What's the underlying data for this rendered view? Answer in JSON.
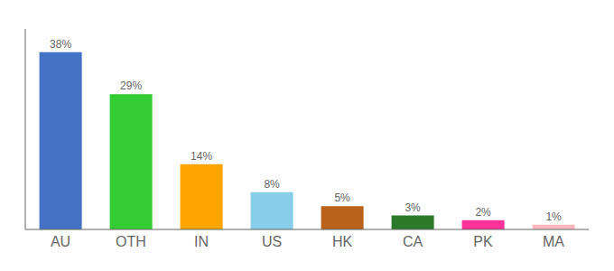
{
  "chart_data": {
    "type": "bar",
    "categories": [
      "AU",
      "OTH",
      "IN",
      "US",
      "HK",
      "CA",
      "PK",
      "MA"
    ],
    "values": [
      38,
      29,
      14,
      8,
      5,
      3,
      2,
      1
    ],
    "value_labels": [
      "38%",
      "29%",
      "14%",
      "8%",
      "5%",
      "3%",
      "2%",
      "1%"
    ],
    "colors": [
      "#4472C4",
      "#33CC33",
      "#FFA500",
      "#87CEEB",
      "#B8621A",
      "#2A7A2A",
      "#FF3399",
      "#FFB6C1"
    ],
    "ylim": [
      0,
      43
    ],
    "data_labels": true,
    "tick_labels": "x",
    "grid": false
  }
}
